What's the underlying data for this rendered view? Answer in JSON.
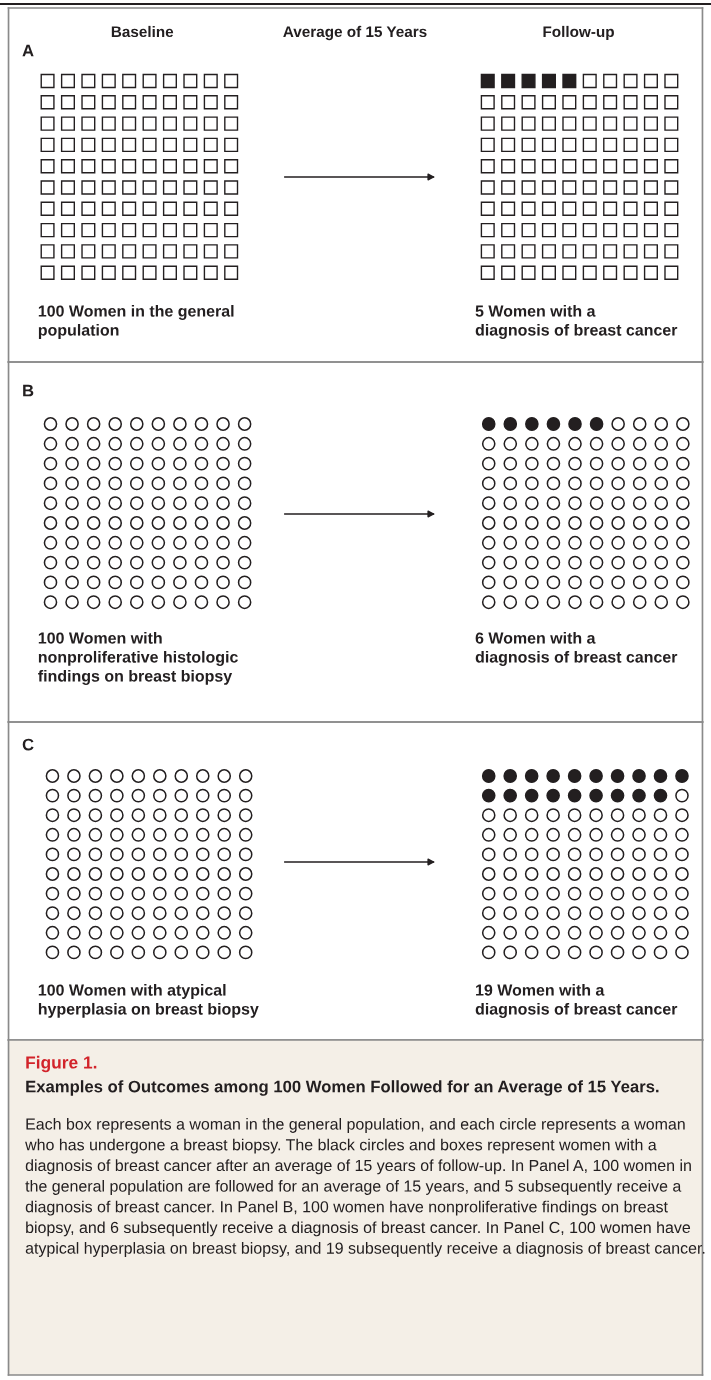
{
  "chart_data": [
    {
      "type": "other",
      "title": "A",
      "categories": [
        "Baseline",
        "Follow-up"
      ],
      "values": [
        100,
        5
      ],
      "color": "#231f20",
      "value_labels": [
        "100 Women in the general\npopulation",
        "5 Women with a\ndiagnosis of breast cancer"
      ],
      "annotations": [
        "Average of 15 Years"
      ]
    },
    {
      "type": "other",
      "title": "B",
      "categories": [
        null,
        null
      ],
      "values": [
        100,
        6
      ],
      "color": "#231f20",
      "value_labels": [
        "100 Women with\nnonproliferative histologic\nfindings on breast biopsy",
        "6 Women with a\ndiagnosis of breast cancer"
      ]
    },
    {
      "type": "other",
      "title": "C",
      "categories": [
        null,
        null
      ],
      "values": [
        100,
        19
      ],
      "color": "#231f20",
      "value_labels": [
        "100 Women with atypical\nhyperplasia on breast biopsy",
        "19 Women with a\ndiagnosis of breast cancer"
      ]
    },
    {
      "type": "other",
      "title": "Figure 1.",
      "subtitle": "Examples of Outcomes among 100 Women Followed for an Average of 15 Years.",
      "color": "#d2232a",
      "annotations": [
        "Each box represents a woman in the general population, and each circle represents a woman who has undergone a breast biopsy. The black circles and boxes represent women with a diagnosis of breast cancer after an average of 15 years of follow-up. In Panel A, 100 women in the general population are followed for an average of 15 years, and 5 subsequently receive a diagnosis of breast cancer. In Panel B, 100 women have nonproliferative findings on breast biopsy, and 6 subsequently receive a diagnosis of breast cancer. In Panel C, 100 women have atypical hyperplasia on breast biopsy, and 19 subsequently receive a diagnosis of breast cancer."
      ]
    }
  ]
}
